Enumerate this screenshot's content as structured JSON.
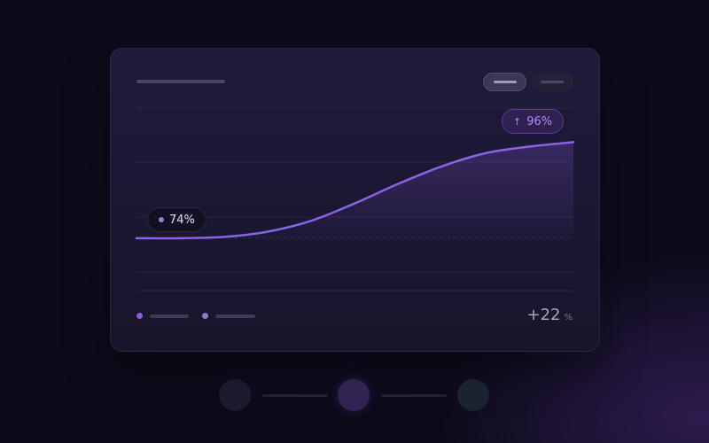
{
  "chart_data": {
    "type": "area",
    "x": [
      0,
      1,
      2,
      3,
      4,
      5,
      6,
      7,
      8,
      9,
      10
    ],
    "series": [
      {
        "values": [
          74,
          74,
          74.3,
          75.5,
          78,
          82,
          86.5,
          90.5,
          93.5,
          95,
          96
        ]
      }
    ],
    "baseline": 74,
    "ylim": [
      62,
      104
    ],
    "grid": true,
    "annotations": {
      "start_label": "74%",
      "end_label": "96%",
      "change_value": "+22",
      "change_unit": "%"
    }
  },
  "colors": {
    "line": "#8a63e6",
    "fill": "#5a3d95",
    "grid": "#2a2643",
    "baseline_dots": "#4a4566"
  },
  "icons": {
    "start_marker": "dot-icon",
    "end_marker": "arrow-up-icon"
  },
  "end_arrow": "↑"
}
